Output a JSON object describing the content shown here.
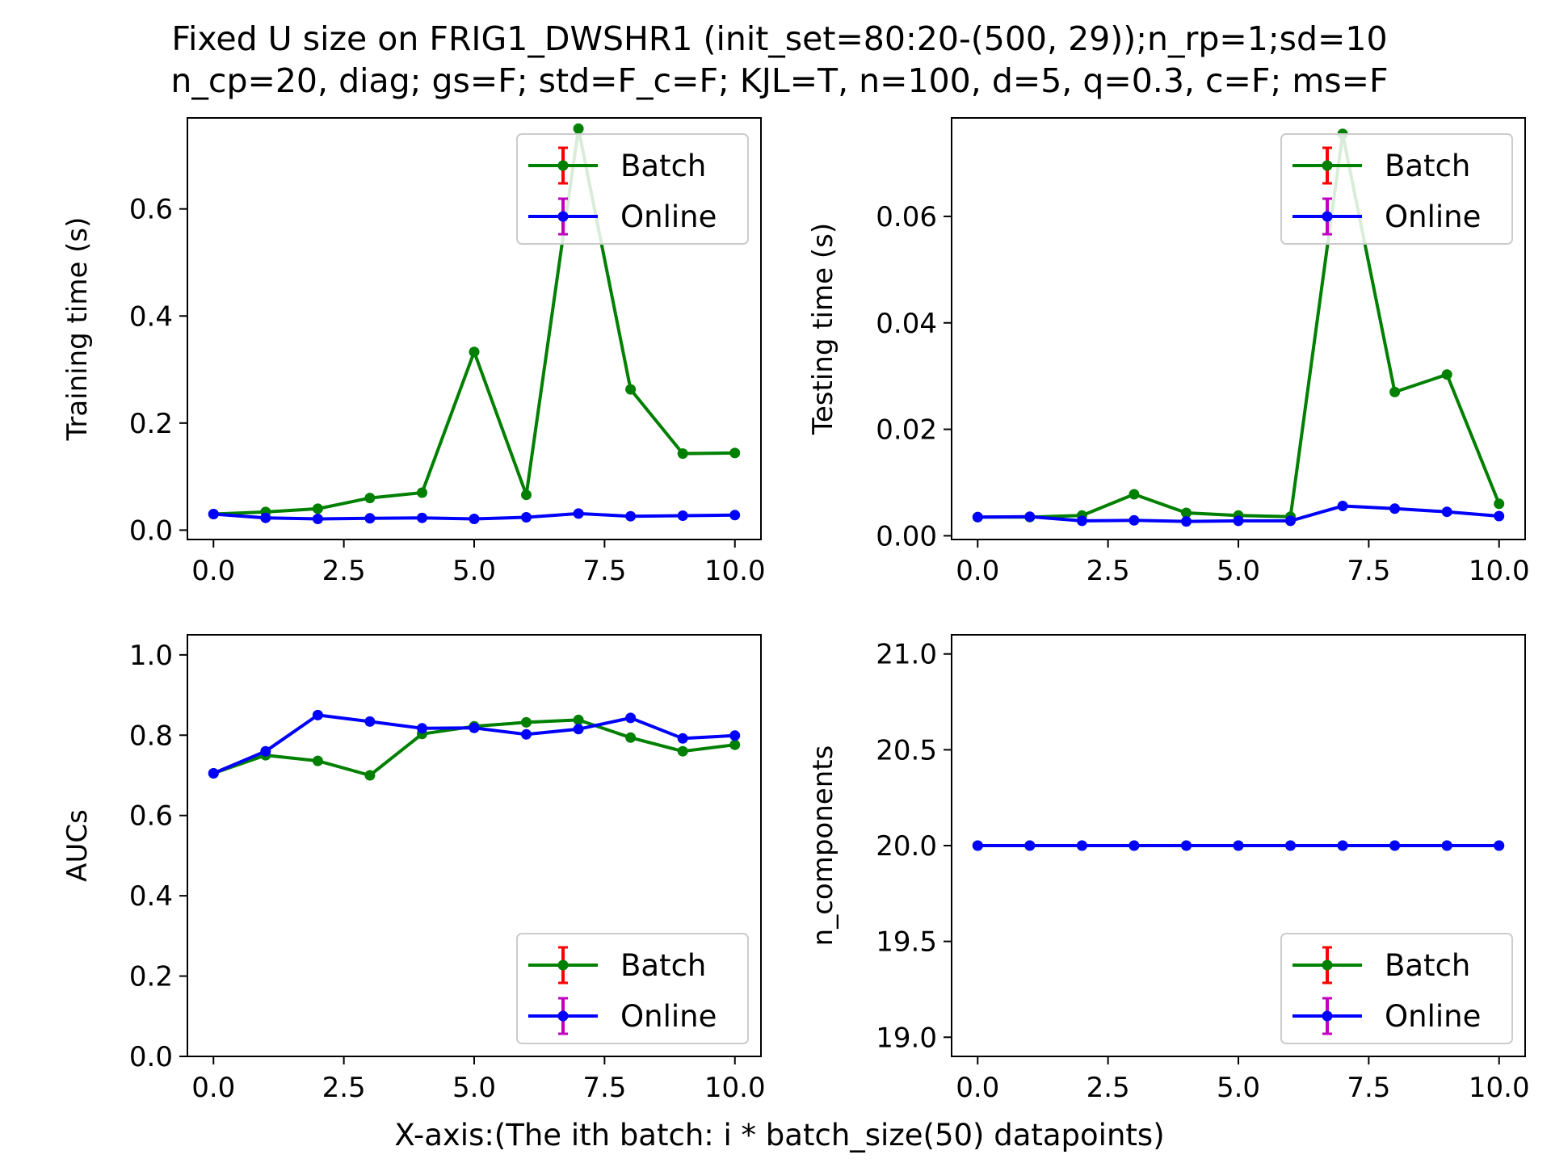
{
  "title_line1": "Fixed U size on FRIG1_DWSHR1 (init_set=80:20-(500, 29));n_rp=1;sd=10",
  "title_line2": "n_cp=20, diag; gs=F; std=F_c=F; KJL=T, n=100, d=5, q=0.3, c=F; ms=F",
  "xlabel": "X-axis:(The ith batch: i * batch_size(50) datapoints)",
  "colors": {
    "batch": "#008000",
    "online": "#0000ff",
    "batch_errbar": "#ff0000",
    "online_errbar": "#bf00bf"
  },
  "chart_data": [
    {
      "type": "line",
      "ylabel": "Training time (s)",
      "x": [
        0,
        1,
        2,
        3,
        4,
        5,
        6,
        7,
        8,
        9,
        10
      ],
      "xlim": [
        -0.5,
        10.5
      ],
      "ylim": [
        -0.0175,
        0.77
      ],
      "xticks": [
        "0.0",
        "2.5",
        "5.0",
        "7.5",
        "10.0"
      ],
      "xtick_values": [
        0,
        2.5,
        5,
        7.5,
        10
      ],
      "yticks": [
        "0.0",
        "0.2",
        "0.4",
        "0.6"
      ],
      "ytick_values": [
        0,
        0.2,
        0.4,
        0.6
      ],
      "legend_loc": "upper right",
      "series": [
        {
          "name": "Batch",
          "values": [
            0.03,
            0.034,
            0.04,
            0.06,
            0.07,
            0.333,
            0.066,
            0.75,
            0.263,
            0.143,
            0.144
          ]
        },
        {
          "name": "Online",
          "values": [
            0.03,
            0.023,
            0.021,
            0.022,
            0.023,
            0.021,
            0.024,
            0.031,
            0.026,
            0.027,
            0.028
          ]
        }
      ]
    },
    {
      "type": "line",
      "ylabel": "Testing time (s)",
      "x": [
        0,
        1,
        2,
        3,
        4,
        5,
        6,
        7,
        8,
        9,
        10
      ],
      "xlim": [
        -0.5,
        10.5
      ],
      "ylim": [
        -0.0007,
        0.0785
      ],
      "xticks": [
        "0.0",
        "2.5",
        "5.0",
        "7.5",
        "10.0"
      ],
      "xtick_values": [
        0,
        2.5,
        5,
        7.5,
        10
      ],
      "yticks": [
        "0.00",
        "0.02",
        "0.04",
        "0.06"
      ],
      "ytick_values": [
        0,
        0.02,
        0.04,
        0.06
      ],
      "legend_loc": "upper right",
      "series": [
        {
          "name": "Batch",
          "values": [
            0.0035,
            0.0035,
            0.0038,
            0.0078,
            0.0043,
            0.0038,
            0.0036,
            0.0755,
            0.027,
            0.0303,
            0.006
          ]
        },
        {
          "name": "Online",
          "values": [
            0.0035,
            0.0036,
            0.0028,
            0.0029,
            0.0027,
            0.0028,
            0.0028,
            0.0056,
            0.0051,
            0.0045,
            0.0037
          ]
        }
      ]
    },
    {
      "type": "line",
      "ylabel": "AUCs",
      "x": [
        0,
        1,
        2,
        3,
        4,
        5,
        6,
        7,
        8,
        9,
        10
      ],
      "xlim": [
        -0.5,
        10.5
      ],
      "ylim": [
        0.0,
        1.05
      ],
      "xticks": [
        "0.0",
        "2.5",
        "5.0",
        "7.5",
        "10.0"
      ],
      "xtick_values": [
        0,
        2.5,
        5,
        7.5,
        10
      ],
      "yticks": [
        "0.0",
        "0.2",
        "0.4",
        "0.6",
        "0.8",
        "1.0"
      ],
      "ytick_values": [
        0,
        0.2,
        0.4,
        0.6,
        0.8,
        1.0
      ],
      "legend_loc": "lower right",
      "series": [
        {
          "name": "Batch",
          "values": [
            0.705,
            0.75,
            0.736,
            0.7,
            0.803,
            0.822,
            0.832,
            0.838,
            0.794,
            0.76,
            0.776
          ]
        },
        {
          "name": "Online",
          "values": [
            0.705,
            0.76,
            0.85,
            0.834,
            0.817,
            0.818,
            0.802,
            0.815,
            0.843,
            0.792,
            0.799
          ]
        }
      ]
    },
    {
      "type": "line",
      "ylabel": "n_components",
      "x": [
        0,
        1,
        2,
        3,
        4,
        5,
        6,
        7,
        8,
        9,
        10
      ],
      "xlim": [
        -0.5,
        10.5
      ],
      "ylim": [
        18.9,
        21.1
      ],
      "xticks": [
        "0.0",
        "2.5",
        "5.0",
        "7.5",
        "10.0"
      ],
      "xtick_values": [
        0,
        2.5,
        5,
        7.5,
        10
      ],
      "yticks": [
        "19.0",
        "19.5",
        "20.0",
        "20.5",
        "21.0"
      ],
      "ytick_values": [
        19.0,
        19.5,
        20.0,
        20.5,
        21.0
      ],
      "legend_loc": "lower right",
      "series": [
        {
          "name": "Batch",
          "values": [
            20,
            20,
            20,
            20,
            20,
            20,
            20,
            20,
            20,
            20,
            20
          ]
        },
        {
          "name": "Online",
          "values": [
            20,
            20,
            20,
            20,
            20,
            20,
            20,
            20,
            20,
            20,
            20
          ]
        }
      ]
    }
  ]
}
